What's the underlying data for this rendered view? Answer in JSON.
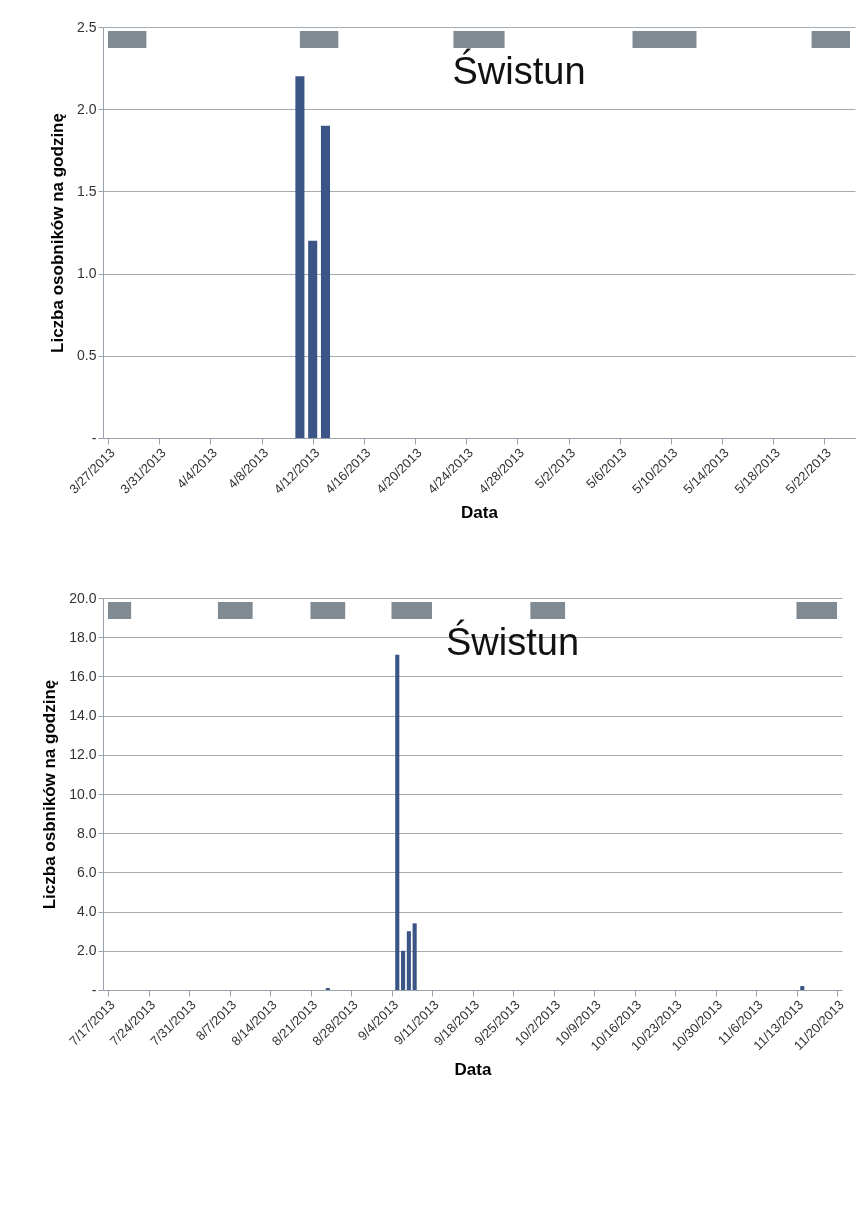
{
  "chart_data": [
    {
      "type": "bar",
      "title": "Świstun",
      "xlabel": "Data",
      "ylabel": "Liczba osobników na godzinę",
      "x": [
        "2013-04-11",
        "2013-04-12",
        "2013-04-13"
      ],
      "series": [
        {
          "color": "#3b5587",
          "values": [
            2.2,
            1.2,
            1.9
          ]
        }
      ],
      "xlim": [
        "2013-03-27",
        "2013-05-24"
      ],
      "xticks": [
        {
          "value": "2013-03-27",
          "label": "3/27/2013"
        },
        {
          "value": "2013-03-31",
          "label": "3/31/2013"
        },
        {
          "value": "2013-04-04",
          "label": "4/4/2013"
        },
        {
          "value": "2013-04-08",
          "label": "4/8/2013"
        },
        {
          "value": "2013-04-12",
          "label": "4/12/2013"
        },
        {
          "value": "2013-04-16",
          "label": "4/16/2013"
        },
        {
          "value": "2013-04-20",
          "label": "4/20/2013"
        },
        {
          "value": "2013-04-24",
          "label": "4/24/2013"
        },
        {
          "value": "2013-04-28",
          "label": "4/28/2013"
        },
        {
          "value": "2013-05-02",
          "label": "5/2/2013"
        },
        {
          "value": "2013-05-06",
          "label": "5/6/2013"
        },
        {
          "value": "2013-05-10",
          "label": "5/10/2013"
        },
        {
          "value": "2013-05-14",
          "label": "5/14/2013"
        },
        {
          "value": "2013-05-18",
          "label": "5/18/2013"
        },
        {
          "value": "2013-05-22",
          "label": "5/22/2013"
        }
      ],
      "ylim": [
        0,
        2.5
      ],
      "yticks": [
        {
          "value": 0,
          "label": "-"
        },
        0.5,
        {
          "value": 1,
          "label": "1.0"
        },
        1.5,
        {
          "value": 2,
          "label": "2.0"
        },
        2.5
      ],
      "grid": "y",
      "bands": [
        {
          "axis": "x",
          "from": "2013-03-27",
          "to": "2013-03-30",
          "color": "#7f8a93"
        },
        {
          "axis": "x",
          "from": "2013-04-11",
          "to": "2013-04-14",
          "color": "#7f8a93"
        },
        {
          "axis": "x",
          "from": "2013-04-23",
          "to": "2013-04-27",
          "color": "#7f8a93"
        },
        {
          "axis": "x",
          "from": "2013-05-07",
          "to": "2013-05-12",
          "color": "#7f8a93"
        },
        {
          "axis": "x",
          "from": "2013-05-21",
          "to": "2013-05-24",
          "color": "#7f8a93"
        }
      ]
    },
    {
      "type": "bar",
      "title": "Świstun",
      "xlabel": "Data",
      "ylabel": "Liczba osbników na godzinę",
      "x": [
        "2013-08-24",
        "2013-09-05",
        "2013-09-06",
        "2013-09-07",
        "2013-09-08",
        "2013-11-14"
      ],
      "series": [
        {
          "color": "#3b5587",
          "values": [
            0.1,
            17.1,
            2.0,
            3.0,
            3.4,
            0.2
          ]
        }
      ],
      "xlim": [
        "2013-07-17",
        "2013-11-20"
      ],
      "xticks": [
        {
          "value": "2013-07-17",
          "label": "7/17/2013"
        },
        {
          "value": "2013-07-24",
          "label": "7/24/2013"
        },
        {
          "value": "2013-07-31",
          "label": "7/31/2013"
        },
        {
          "value": "2013-08-07",
          "label": "8/7/2013"
        },
        {
          "value": "2013-08-14",
          "label": "8/14/2013"
        },
        {
          "value": "2013-08-21",
          "label": "8/21/2013"
        },
        {
          "value": "2013-08-28",
          "label": "8/28/2013"
        },
        {
          "value": "2013-09-04",
          "label": "9/4/2013"
        },
        {
          "value": "2013-09-11",
          "label": "9/11/2013"
        },
        {
          "value": "2013-09-18",
          "label": "9/18/2013"
        },
        {
          "value": "2013-09-25",
          "label": "9/25/2013"
        },
        {
          "value": "2013-10-02",
          "label": "10/2/2013"
        },
        {
          "value": "2013-10-09",
          "label": "10/9/2013"
        },
        {
          "value": "2013-10-16",
          "label": "10/16/2013"
        },
        {
          "value": "2013-10-23",
          "label": "10/23/2013"
        },
        {
          "value": "2013-10-30",
          "label": "10/30/2013"
        },
        {
          "value": "2013-11-06",
          "label": "11/6/2013"
        },
        {
          "value": "2013-11-13",
          "label": "11/13/2013"
        },
        {
          "value": "2013-11-20",
          "label": "11/20/2013"
        }
      ],
      "ylim": [
        0,
        20
      ],
      "yticks": [
        {
          "value": 0,
          "label": "-"
        },
        {
          "value": 2,
          "label": "2.0"
        },
        {
          "value": 4,
          "label": "4.0"
        },
        {
          "value": 6,
          "label": "6.0"
        },
        {
          "value": 8,
          "label": "8.0"
        },
        {
          "value": 10,
          "label": "10.0"
        },
        {
          "value": 12,
          "label": "12.0"
        },
        {
          "value": 14,
          "label": "14.0"
        },
        {
          "value": 16,
          "label": "16.0"
        },
        {
          "value": 18,
          "label": "18.0"
        },
        {
          "value": 20,
          "label": "20.0"
        }
      ],
      "grid": "y",
      "bands": [
        {
          "axis": "x",
          "from": "2013-07-17",
          "to": "2013-07-21",
          "color": "#7f8a93"
        },
        {
          "axis": "x",
          "from": "2013-08-05",
          "to": "2013-08-11",
          "color": "#7f8a93"
        },
        {
          "axis": "x",
          "from": "2013-08-21",
          "to": "2013-08-27",
          "color": "#7f8a93"
        },
        {
          "axis": "x",
          "from": "2013-09-04",
          "to": "2013-09-11",
          "color": "#7f8a93"
        },
        {
          "axis": "x",
          "from": "2013-09-28",
          "to": "2013-10-04",
          "color": "#7f8a93"
        },
        {
          "axis": "x",
          "from": "2013-11-13",
          "to": "2013-11-20",
          "color": "#7f8a93"
        }
      ]
    }
  ]
}
